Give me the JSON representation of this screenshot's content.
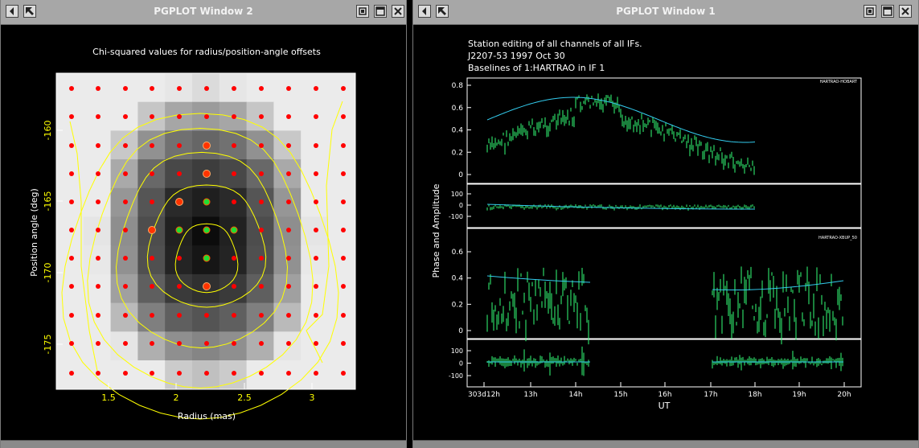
{
  "window2": {
    "title": "PGPLOT Window 2",
    "plot_title": "Chi-squared values for radius/position-angle offsets",
    "xlabel": "Radius (mas)",
    "ylabel": "Position angle (deg)",
    "xticks": [
      "1.5",
      "2",
      "2.5",
      "3"
    ],
    "yticks": [
      "-160",
      "-165",
      "-170",
      "-175"
    ]
  },
  "window1": {
    "title": "PGPLOT Window 1",
    "header_line1": "Station editing of all channels of all IFs.",
    "header_line2": "J2207-53   1997 Oct 30",
    "header_line3": "Baselines of 1:HARTRAO in IF 1",
    "ylabel": "Phase and Amplitude",
    "xlabel": "UT",
    "panel1_label": "HARTRAO-HOBART",
    "panel2_label": "HARTRAO-XBUP_50",
    "amp_ticks": [
      "0.8",
      "0.6",
      "0.4",
      "0.2",
      "0"
    ],
    "phase_ticks": [
      "100",
      "0",
      "-100"
    ],
    "x_ticks": [
      "303d12h",
      "13h",
      "14h",
      "15h",
      "16h",
      "17h",
      "18h",
      "19h",
      "20h"
    ]
  },
  "colors": {
    "axis_yellow": "#ffff00",
    "marker_red": "#ff0000",
    "data_green": "#33ff77",
    "model_cyan": "#33ccee",
    "titlebar_grey": "#a7a7a7"
  },
  "icons": [
    "arrow-left-icon",
    "arrow-diagonal-icon",
    "iconify-icon",
    "maximize-icon",
    "close-icon"
  ]
}
